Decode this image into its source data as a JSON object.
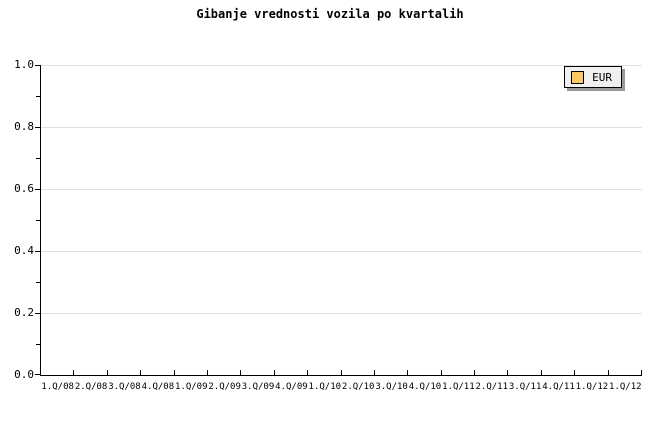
{
  "chart_data": {
    "type": "bar",
    "title": "Gibanje vrednosti vozila po kvartalih",
    "xlabel": "",
    "ylabel": "",
    "categories": [
      "1.Q/08",
      "2.Q/08",
      "3.Q/08",
      "4.Q/08",
      "1.Q/09",
      "2.Q/09",
      "3.Q/09",
      "4.Q/09",
      "1.Q/10",
      "2.Q/10",
      "3.Q/10",
      "4.Q/10",
      "1.Q/11",
      "2.Q/11",
      "3.Q/11",
      "4.Q/11",
      "1.Q/12",
      "1.Q/12"
    ],
    "series": [
      {
        "name": "EUR",
        "color": "#fbcb63",
        "values": []
      }
    ],
    "ylim": [
      0.0,
      1.0
    ],
    "y_major_step": 0.2,
    "y_minor_step": 0.1,
    "y_tick_labels": [
      "0.0",
      "0.2",
      "0.4",
      "0.6",
      "0.8",
      "1.0"
    ],
    "grid": "horizontal-major-only",
    "legend": {
      "position": "top-right",
      "entries": [
        {
          "label": "EUR",
          "swatch_color": "#fbcb63"
        }
      ]
    },
    "colors": {
      "background": "#ffffff",
      "axis": "#000000",
      "grid": "#e0e0e0",
      "text": "#000000",
      "legend_background": "#f0f0f0",
      "legend_border": "#000000",
      "legend_shadow": "#999999",
      "swatch_border": "#000000"
    }
  }
}
